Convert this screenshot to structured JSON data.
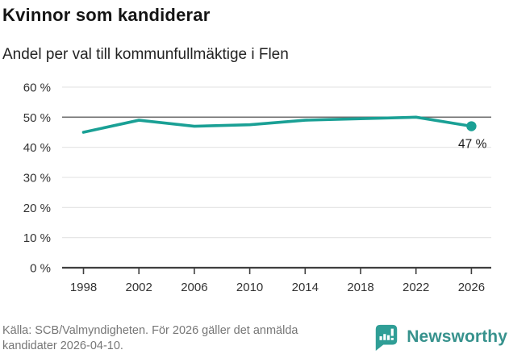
{
  "header": {
    "title": "Kvinnor som kandiderar",
    "subtitle": "Andel per val till kommunfullmäktige i Flen"
  },
  "chart_data": {
    "type": "line",
    "title": "Kvinnor som kandiderar",
    "subtitle": "Andel per val till kommunfullmäktige i Flen",
    "x": [
      1998,
      2002,
      2006,
      2010,
      2014,
      2018,
      2022,
      2026
    ],
    "xtick_labels": [
      "1998",
      "2002",
      "2006",
      "2010",
      "2014",
      "2018",
      "2022",
      "2026"
    ],
    "values": [
      45,
      49,
      47,
      47.5,
      49,
      49.5,
      50,
      47
    ],
    "ylim": [
      0,
      60
    ],
    "ytick_values": [
      0,
      10,
      20,
      30,
      40,
      50,
      60
    ],
    "ytick_labels": [
      "0 %",
      "10 %",
      "20 %",
      "30 %",
      "40 %",
      "50 %",
      "60 %"
    ],
    "reference_line": 50,
    "grid": true,
    "legend": false,
    "last_point_label": "47 %",
    "line_color": "#1aa095",
    "grid_color": "#e2e2e2",
    "reference_color": "#6f6f6f",
    "axis_color": "#3f3f3f"
  },
  "footer": {
    "source_lines": [
      "Källa: SCB/Valmyndigheten. För 2026 gäller det anmälda",
      "kandidater 2026-04-10."
    ],
    "brand": "Newsworthy",
    "brand_color": "#37928d"
  }
}
